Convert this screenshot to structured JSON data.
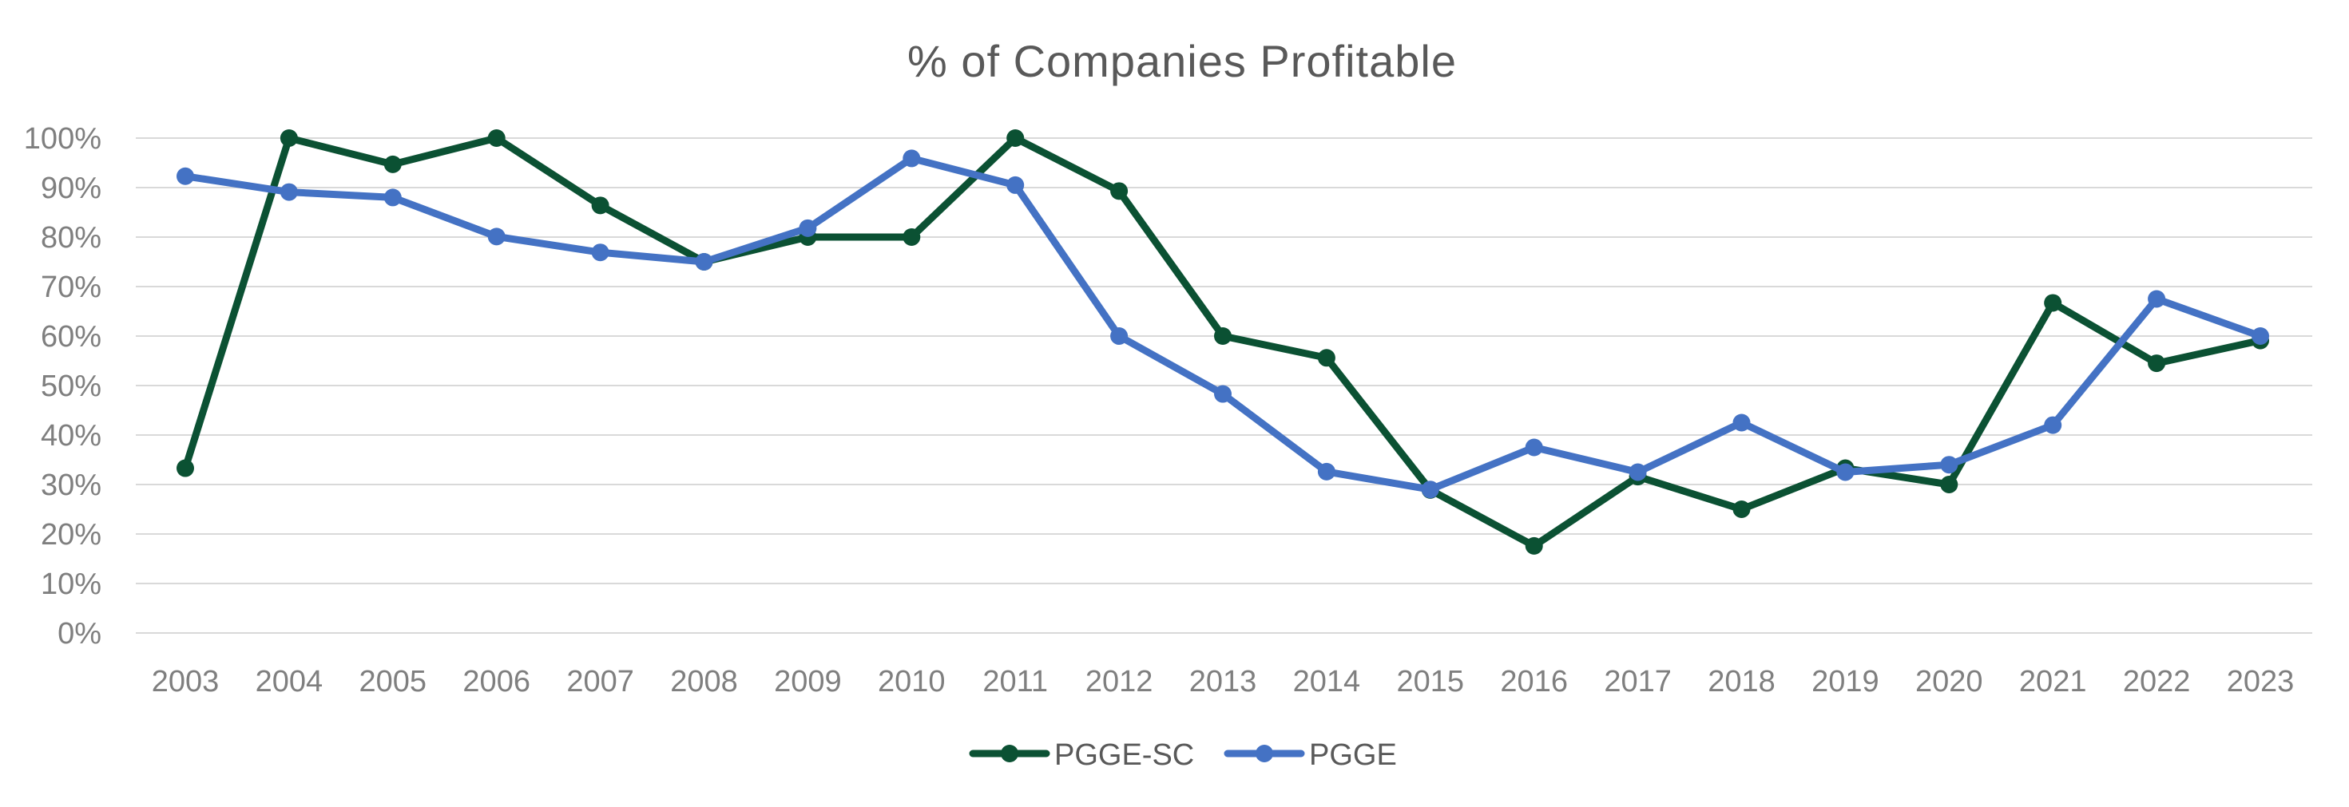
{
  "chart_data": {
    "type": "line",
    "title": "% of Companies Profitable",
    "xlabel": "",
    "ylabel": "",
    "categories": [
      "2003",
      "2004",
      "2005",
      "2006",
      "2007",
      "2008",
      "2009",
      "2010",
      "2011",
      "2012",
      "2013",
      "2014",
      "2015",
      "2016",
      "2017",
      "2018",
      "2019",
      "2020",
      "2021",
      "2022",
      "2023"
    ],
    "y_ticks": [
      0,
      10,
      20,
      30,
      40,
      50,
      60,
      70,
      80,
      90,
      100
    ],
    "y_tick_labels": [
      "0%",
      "10%",
      "20%",
      "30%",
      "40%",
      "50%",
      "60%",
      "70%",
      "80%",
      "90%",
      "100%"
    ],
    "ylim": [
      0,
      100
    ],
    "grid": true,
    "legend_position": "bottom",
    "series": [
      {
        "name": "PGGE-SC",
        "color": "#0b5133",
        "values": [
          33.3,
          100,
          94.7,
          100,
          86.4,
          75,
          80,
          80,
          100,
          89.3,
          60,
          55.6,
          28.9,
          17.6,
          31.6,
          25,
          33.3,
          30,
          66.7,
          54.5,
          59.1
        ]
      },
      {
        "name": "PGGE",
        "color": "#4472c4",
        "values": [
          92.3,
          89.1,
          88,
          80.1,
          76.9,
          75,
          81.8,
          95.9,
          90.5,
          60,
          48.3,
          32.6,
          29,
          37.5,
          32.5,
          42.5,
          32.5,
          34,
          42,
          67.5,
          60
        ]
      }
    ]
  }
}
